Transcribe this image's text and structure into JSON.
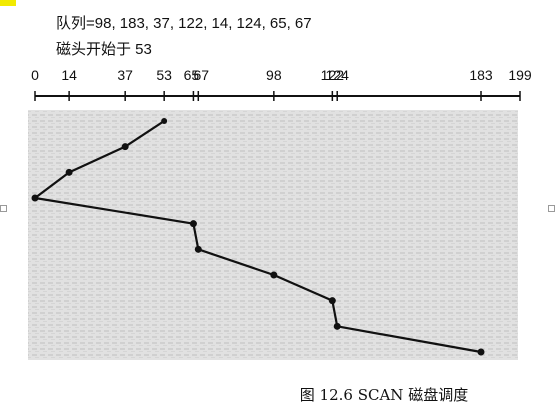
{
  "figure": {
    "queue_line": "队列=98, 183, 37, 122, 14, 124, 65, 67",
    "start_line": "磁头开始于  53",
    "caption": "图 12.6   SCAN 磁盘调度"
  },
  "chart_data": {
    "type": "line",
    "axis": {
      "min": 0,
      "max": 199,
      "tick_values": [
        0,
        14,
        37,
        53,
        65,
        67,
        98,
        122,
        124,
        183,
        199
      ],
      "tick_labels": [
        "0",
        "14",
        "37",
        "53",
        "65",
        "67",
        "98",
        "122",
        "124",
        "183",
        "199"
      ]
    },
    "series": [
      {
        "values": [
          53,
          37,
          14,
          0,
          65,
          67,
          98,
          122,
          124,
          183
        ]
      }
    ],
    "line_color": "#111111",
    "background_texture": "#b9b9b9"
  }
}
